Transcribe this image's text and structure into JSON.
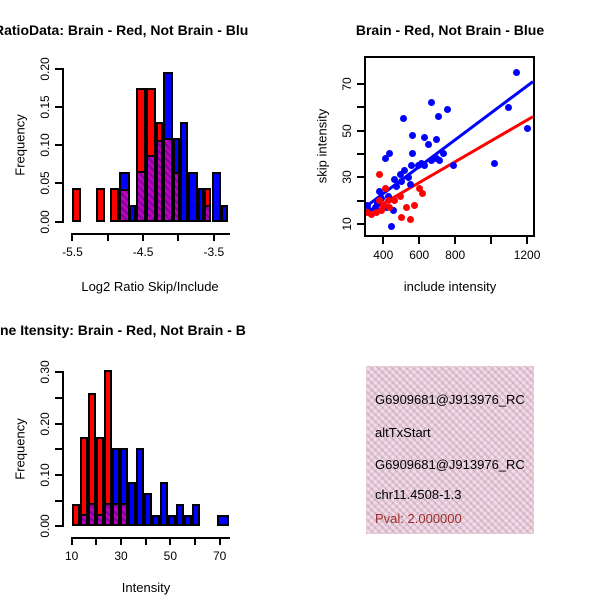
{
  "colors": {
    "brain_red": "#FF0000",
    "not_brain_blue": "#0000FF",
    "overlap_purple": "#BF00BF",
    "overlap_purple_dark": "#7C0099",
    "pval_dark_red": "#9E2A2A",
    "info_box_pink": "#F6D8F0",
    "axis_black": "#000000"
  },
  "chart_data": [
    {
      "id": "hist_ratio",
      "type": "bar",
      "title": "RatioData: Brain - Red, Not Brain - Blu",
      "xlabel": "Log2 Ratio Skip/Include",
      "ylabel": "Frequency",
      "legend_note": "Brain = red, Not Brain = blue, overlap = purple hatch",
      "xlim": [
        -5.62,
        -3.2
      ],
      "ylim": [
        0,
        0.2033
      ],
      "xticks": [
        {
          "v": -5.5,
          "label": "-5.5"
        },
        {
          "v": -5.0,
          "label": ""
        },
        {
          "v": -4.5,
          "label": "-4.5"
        },
        {
          "v": -4.0,
          "label": ""
        },
        {
          "v": -3.5,
          "label": "-3.5"
        }
      ],
      "yticks": [
        {
          "v": 0,
          "label": "0.00"
        },
        {
          "v": 0.05,
          "label": "0.05"
        },
        {
          "v": 0.1,
          "label": "0.10"
        },
        {
          "v": 0.15,
          "label": "0.15"
        },
        {
          "v": 0.2,
          "label": "0.20"
        }
      ],
      "bars": [
        {
          "x": -5.51,
          "w": 0.135,
          "h": 0.0435,
          "c": "red",
          "o": 0
        },
        {
          "x": -5.17,
          "w": 0.135,
          "h": 0.0435,
          "c": "red",
          "o": 0
        },
        {
          "x": -4.97,
          "w": 0.135,
          "h": 0.0435,
          "c": "red",
          "o": 0
        },
        {
          "x": -4.835,
          "w": 0.145,
          "h": 0.065,
          "c": "blue",
          "o": 0.0435
        },
        {
          "x": -4.7,
          "w": 0.1,
          "h": 0.0217,
          "c": "blue",
          "o": 0
        },
        {
          "x": -4.6,
          "w": 0.14,
          "h": 0.174,
          "c": "red",
          "o": 0.065
        },
        {
          "x": -4.46,
          "w": 0.14,
          "h": 0.174,
          "c": "red",
          "o": 0.087
        },
        {
          "x": -4.32,
          "w": 0.1,
          "h": 0.13,
          "c": "red",
          "o": 0.109
        },
        {
          "x": -4.22,
          "w": 0.14,
          "h": 0.196,
          "c": "blue",
          "o": 0.109
        },
        {
          "x": -4.08,
          "w": 0.1,
          "h": 0.109,
          "c": "blue",
          "o": 0.065
        },
        {
          "x": -3.98,
          "w": 0.11,
          "h": 0.13,
          "c": "blue",
          "o": 0
        },
        {
          "x": -3.87,
          "w": 0.14,
          "h": 0.065,
          "c": "blue",
          "o": 0
        },
        {
          "x": -3.73,
          "w": 0.09,
          "h": 0.0435,
          "c": "blue",
          "o": 0
        },
        {
          "x": -3.64,
          "w": 0.105,
          "h": 0.0435,
          "c": "red",
          "o": 0.0217
        },
        {
          "x": -3.53,
          "w": 0.125,
          "h": 0.065,
          "c": "blue",
          "o": 0
        },
        {
          "x": -3.4,
          "w": 0.1,
          "h": 0.0217,
          "c": "blue",
          "o": 0
        }
      ]
    },
    {
      "id": "scatter",
      "type": "scatter",
      "title": "Brain - Red, Not Brain - Blue",
      "xlabel": "include intensity",
      "ylabel": "skip intensity",
      "xlim": [
        304,
        1233
      ],
      "ylim": [
        5.3,
        81.1
      ],
      "xticks": [
        {
          "v": 400,
          "label": "400"
        },
        {
          "v": 600,
          "label": "600"
        },
        {
          "v": 800,
          "label": "800"
        },
        {
          "v": 1000,
          "label": ""
        },
        {
          "v": 1200,
          "label": "1200"
        }
      ],
      "yticks": [
        {
          "v": 10,
          "label": "10"
        },
        {
          "v": 20,
          "label": ""
        },
        {
          "v": 30,
          "label": "30"
        },
        {
          "v": 40,
          "label": ""
        },
        {
          "v": 50,
          "label": "50"
        },
        {
          "v": 60,
          "label": ""
        },
        {
          "v": 70,
          "label": "70"
        }
      ],
      "series": [
        {
          "name": "Not Brain",
          "color": "blue",
          "points": [
            [
              1140,
              75
            ],
            [
              1095,
              60
            ],
            [
              1205,
              51
            ],
            [
              1020,
              36
            ],
            [
              790,
              35
            ],
            [
              760,
              59
            ],
            [
              735,
              40
            ],
            [
              715,
              37
            ],
            [
              705,
              56
            ],
            [
              695,
              46
            ],
            [
              695,
              38
            ],
            [
              670,
              62
            ],
            [
              670,
              37
            ],
            [
              650,
              44
            ],
            [
              630,
              47
            ],
            [
              630,
              35
            ],
            [
              615,
              36
            ],
            [
              595,
              35
            ],
            [
              565,
              48
            ],
            [
              565,
              40
            ],
            [
              555,
              35
            ],
            [
              550,
              27
            ],
            [
              540,
              30
            ],
            [
              520,
              33
            ],
            [
              510,
              55
            ],
            [
              500,
              28
            ],
            [
              495,
              31
            ],
            [
              475,
              26
            ],
            [
              465,
              29
            ],
            [
              455,
              16
            ],
            [
              445,
              9
            ],
            [
              435,
              40
            ],
            [
              430,
              22
            ],
            [
              420,
              17
            ],
            [
              410,
              38
            ],
            [
              390,
              21
            ],
            [
              380,
              24
            ],
            [
              370,
              19
            ],
            [
              355,
              17
            ],
            [
              325,
              16
            ],
            [
              310,
              18
            ]
          ]
        },
        {
          "name": "Brain",
          "color": "red",
          "points": [
            [
              620,
              23
            ],
            [
              600,
              25
            ],
            [
              575,
              18
            ],
            [
              550,
              12
            ],
            [
              530,
              17
            ],
            [
              500,
              13
            ],
            [
              495,
              22
            ],
            [
              465,
              20
            ],
            [
              435,
              17
            ],
            [
              430,
              20
            ],
            [
              410,
              25
            ],
            [
              400,
              18
            ],
            [
              390,
              16
            ],
            [
              380,
              31
            ],
            [
              380,
              20
            ],
            [
              365,
              15
            ],
            [
              335,
              14
            ],
            [
              310,
              15
            ]
          ]
        }
      ],
      "lines": [
        {
          "color": "blue",
          "x1": 304,
          "y1": 17.5,
          "x2": 1233,
          "y2": 71
        },
        {
          "color": "red",
          "x1": 304,
          "y1": 14.5,
          "x2": 1233,
          "y2": 56
        }
      ]
    },
    {
      "id": "hist_intensity",
      "type": "bar",
      "title": "ne Itensity: Brain - Red, Not Brain - B",
      "xlabel": "Intensity",
      "ylabel": "Frequency",
      "legend_note": "Brain = red, Not Brain = blue, overlap = purple hatch",
      "xlim": [
        6.9,
        76.2
      ],
      "ylim": [
        0,
        0.3086
      ],
      "xticks": [
        {
          "v": 10,
          "label": "10"
        },
        {
          "v": 20,
          "label": ""
        },
        {
          "v": 30,
          "label": "30"
        },
        {
          "v": 40,
          "label": ""
        },
        {
          "v": 50,
          "label": "50"
        },
        {
          "v": 60,
          "label": ""
        },
        {
          "v": 70,
          "label": "70"
        }
      ],
      "yticks": [
        {
          "v": 0,
          "label": "0.00"
        },
        {
          "v": 0.05,
          "label": ""
        },
        {
          "v": 0.1,
          "label": "0.10"
        },
        {
          "v": 0.15,
          "label": ""
        },
        {
          "v": 0.2,
          "label": "0.20"
        },
        {
          "v": 0.25,
          "label": ""
        },
        {
          "v": 0.3,
          "label": "0.30"
        }
      ],
      "bars": [
        {
          "x": 10.0,
          "w": 3.24,
          "h": 0.0435,
          "c": "red",
          "o": 0
        },
        {
          "x": 13.25,
          "w": 3.24,
          "h": 0.174,
          "c": "red",
          "o": 0.0217
        },
        {
          "x": 16.6,
          "w": 3.24,
          "h": 0.26,
          "c": "red",
          "o": 0.0435
        },
        {
          "x": 19.86,
          "w": 3.24,
          "h": 0.174,
          "c": "red",
          "o": 0.0217
        },
        {
          "x": 23.1,
          "w": 3.24,
          "h": 0.304,
          "c": "red",
          "o": 0.0435
        },
        {
          "x": 26.5,
          "w": 3.24,
          "h": 0.152,
          "c": "blue",
          "o": 0.0435
        },
        {
          "x": 29.7,
          "w": 3.24,
          "h": 0.152,
          "c": "blue",
          "o": 0.0435
        },
        {
          "x": 33.0,
          "w": 3.24,
          "h": 0.087,
          "c": "blue",
          "o": 0
        },
        {
          "x": 36.2,
          "w": 3.24,
          "h": 0.152,
          "c": "blue",
          "o": 0
        },
        {
          "x": 39.4,
          "w": 3.24,
          "h": 0.065,
          "c": "blue",
          "o": 0
        },
        {
          "x": 42.7,
          "w": 3.24,
          "h": 0.0217,
          "c": "blue",
          "o": 0
        },
        {
          "x": 45.9,
          "w": 3.24,
          "h": 0.087,
          "c": "blue",
          "o": 0
        },
        {
          "x": 49.2,
          "w": 3.24,
          "h": 0.0217,
          "c": "blue",
          "o": 0
        },
        {
          "x": 52.4,
          "w": 3.24,
          "h": 0.0435,
          "c": "blue",
          "o": 0
        },
        {
          "x": 55.7,
          "w": 3.24,
          "h": 0.0217,
          "c": "blue",
          "o": 0
        },
        {
          "x": 58.9,
          "w": 3.24,
          "h": 0.0435,
          "c": "blue",
          "o": 0
        },
        {
          "x": 68.8,
          "w": 4.9,
          "h": 0.0217,
          "c": "blue",
          "o": 0
        }
      ]
    },
    {
      "id": "info_box",
      "type": "info",
      "lines": [
        "G6909681@J913976_RC",
        "altTxStart",
        "G6909681@J913976_RC",
        "chr11.4508-1.3",
        "Pval: 2.000000"
      ]
    }
  ]
}
